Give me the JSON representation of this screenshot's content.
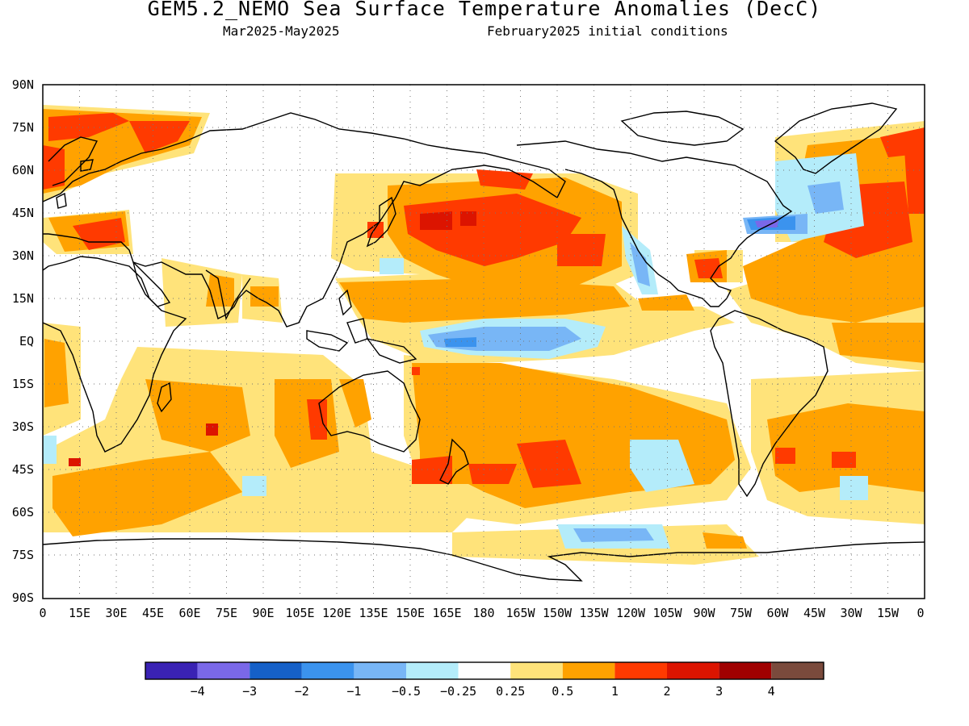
{
  "header": {
    "title": "GEM5.2_NEMO Sea Surface Temperature Anomalies (DecC)",
    "period": "Mar2025-May2025",
    "init": "February2025 initial conditions"
  },
  "axes": {
    "lat_labels": [
      "90N",
      "75N",
      "60N",
      "45N",
      "30N",
      "15N",
      "EQ",
      "15S",
      "30S",
      "45S",
      "60S",
      "75S",
      "90S"
    ],
    "lon_labels": [
      "0",
      "15E",
      "30E",
      "45E",
      "60E",
      "75E",
      "90E",
      "105E",
      "120E",
      "135E",
      "150E",
      "165E",
      "180",
      "165W",
      "150W",
      "135W",
      "120W",
      "105W",
      "90W",
      "75W",
      "60W",
      "45W",
      "30W",
      "15W",
      "0"
    ]
  },
  "colorbar": {
    "colors": [
      "#3a22b4",
      "#7a68e8",
      "#1560c8",
      "#3b93ee",
      "#78b6f6",
      "#b4ecfa",
      "#ffffff",
      "#ffe37a",
      "#ffa200",
      "#ff3a00",
      "#dc1400",
      "#a00000",
      "#7a4a3c"
    ],
    "labels": [
      "−4",
      "−3",
      "−2",
      "−1",
      "−0.5",
      "−0.25",
      "0.25",
      "0.5",
      "1",
      "2",
      "3",
      "4"
    ]
  }
}
